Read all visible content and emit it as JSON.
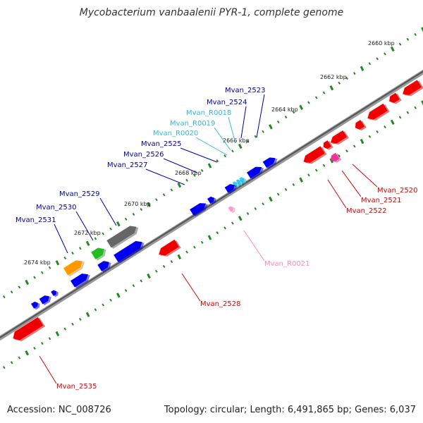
{
  "title": "Mycobacterium vanbaalenii PYR-1, complete genome",
  "accession": "Accession: NC_008726",
  "summary": "Topology: circular; Length: 6,491,865 bp; Genes: 6,037",
  "colors": {
    "forward_gene": "#0000ee",
    "reverse_gene": "#ee0000",
    "rna_gene": "#33ccee",
    "forward_rna_pink": "#ff99cc",
    "green_gene": "#22bb22",
    "orange_gene": "#ff9900",
    "gray_gene": "#666666",
    "magenta_gene": "#ee3399",
    "backbone": "#888888",
    "ticks": "#228822"
  },
  "ticks": [
    {
      "label": "2660 kbp"
    },
    {
      "label": "2662 kbp"
    },
    {
      "label": "2664 kbp"
    },
    {
      "label": "2666 kbp"
    },
    {
      "label": "2668 kbp"
    },
    {
      "label": "2670 kbp"
    },
    {
      "label": "2672 kbp"
    },
    {
      "label": "2674 kbp"
    }
  ],
  "labels_top": [
    {
      "text": "Mvan_2523",
      "color": "#0000aa"
    },
    {
      "text": "Mvan_2524",
      "color": "#0000aa"
    },
    {
      "text": "Mvan_R0018",
      "color": "#33bbdd"
    },
    {
      "text": "Mvan_R0019",
      "color": "#33bbdd"
    },
    {
      "text": "Mvan_R0020",
      "color": "#33bbdd"
    },
    {
      "text": "Mvan_2525",
      "color": "#0000aa"
    },
    {
      "text": "Mvan_2526",
      "color": "#0000aa"
    },
    {
      "text": "Mvan_2527",
      "color": "#0000aa"
    },
    {
      "text": "Mvan_2529",
      "color": "#0000aa"
    },
    {
      "text": "Mvan_2530",
      "color": "#0000aa"
    },
    {
      "text": "Mvan_2531",
      "color": "#0000aa"
    }
  ],
  "labels_bottom": [
    {
      "text": "Mvan_2520",
      "color": "#dd0000"
    },
    {
      "text": "Mvan_2521",
      "color": "#dd0000"
    },
    {
      "text": "Mvan_2522",
      "color": "#dd0000"
    },
    {
      "text": "Mvan_R0021",
      "color": "#ff88bb"
    },
    {
      "text": "Mvan_2528",
      "color": "#dd0000"
    },
    {
      "text": "Mvan_2535",
      "color": "#dd0000"
    }
  ]
}
